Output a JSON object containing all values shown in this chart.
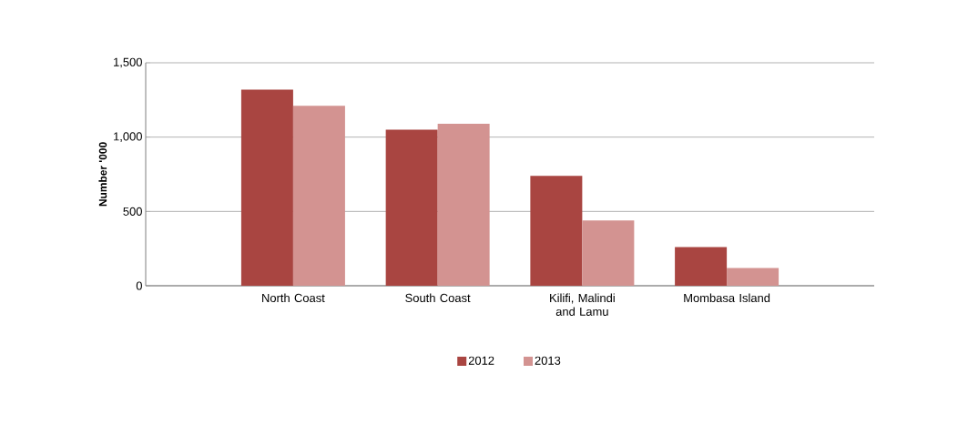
{
  "chart_data": {
    "type": "bar",
    "ylabel": "Number '000",
    "categories": [
      "North Coast",
      "South Coast",
      "Kilifi, Malindi and Lamu",
      "Mombasa Island"
    ],
    "series": [
      {
        "name": "2012",
        "color": "#a94541",
        "values": [
          1320,
          1050,
          740,
          260
        ]
      },
      {
        "name": "2013",
        "color": "#d39391",
        "values": [
          1210,
          1090,
          440,
          120
        ]
      }
    ],
    "ylim": [
      0,
      1500
    ],
    "yticks": [
      0,
      500,
      {
        "value": 1000,
        "label": "1,000"
      },
      {
        "value": 1500,
        "label": "1,500"
      }
    ],
    "grid": "y",
    "legend": "bottom"
  }
}
